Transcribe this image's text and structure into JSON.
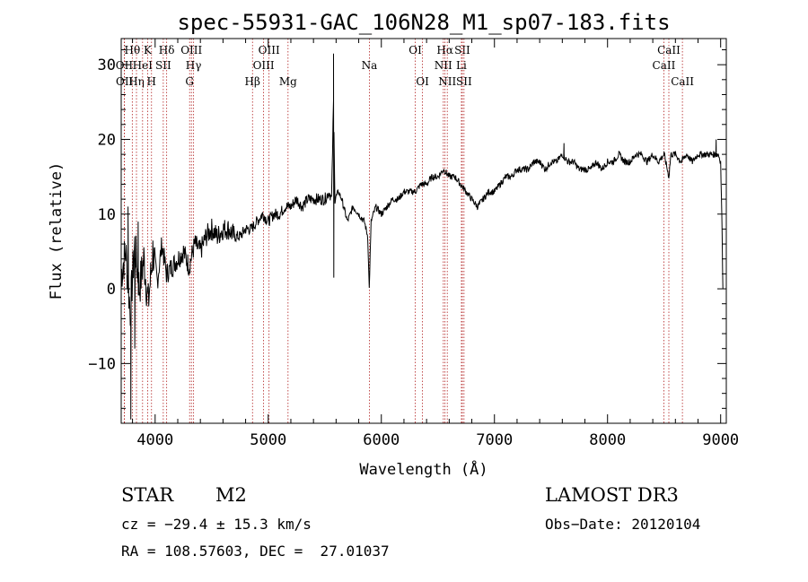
{
  "chart_data": {
    "type": "line",
    "title": "spec-55931-GAC_106N28_M1_sp07-183.fits",
    "xlabel": "Wavelength (Å)",
    "ylabel": "Flux (relative)",
    "xlim": [
      3700,
      9050
    ],
    "ylim": [
      -18,
      33.5
    ],
    "xticks": [
      4000,
      5000,
      6000,
      7000,
      8000,
      9000
    ],
    "yticks": [
      -10,
      0,
      10,
      20,
      30
    ],
    "series": [
      {
        "name": "spectrum",
        "x": [
          3700,
          3740,
          3780,
          3820,
          3860,
          3900,
          3940,
          3980,
          4020,
          4060,
          4100,
          4150,
          4200,
          4250,
          4300,
          4350,
          4400,
          4450,
          4500,
          4550,
          4600,
          4650,
          4700,
          4750,
          4800,
          4850,
          4900,
          4950,
          5000,
          5050,
          5100,
          5150,
          5200,
          5250,
          5300,
          5350,
          5400,
          5450,
          5500,
          5540,
          5560,
          5577,
          5590,
          5620,
          5650,
          5700,
          5750,
          5800,
          5850,
          5880,
          5893,
          5910,
          5950,
          6000,
          6050,
          6100,
          6150,
          6200,
          6250,
          6300,
          6350,
          6400,
          6450,
          6500,
          6550,
          6600,
          6650,
          6700,
          6750,
          6800,
          6850,
          6900,
          6950,
          7000,
          7050,
          7100,
          7150,
          7200,
          7250,
          7300,
          7350,
          7400,
          7450,
          7500,
          7550,
          7600,
          7650,
          7700,
          7750,
          7800,
          7850,
          7900,
          7950,
          8000,
          8050,
          8100,
          8150,
          8200,
          8250,
          8300,
          8350,
          8400,
          8450,
          8500,
          8542,
          8560,
          8600,
          8650,
          8700,
          8750,
          8800,
          8850,
          8900,
          8950,
          8980,
          9000,
          9010,
          9020
        ],
        "y": [
          2,
          5,
          -3,
          6,
          0,
          4,
          -2,
          5,
          1,
          6,
          2,
          3,
          4,
          5,
          3,
          6,
          5,
          7,
          8,
          7,
          8,
          8,
          7,
          7,
          8,
          8,
          9,
          10,
          9,
          10,
          10,
          11,
          11,
          12,
          11,
          12,
          12,
          12,
          12,
          13,
          12,
          25,
          12,
          13,
          12,
          9,
          11,
          10,
          9,
          7,
          0,
          9,
          11,
          10,
          11,
          12,
          12,
          13,
          13,
          13,
          14,
          14,
          15,
          15,
          16,
          15,
          15,
          14,
          13,
          12,
          11,
          12,
          13,
          13,
          14,
          15,
          15,
          16,
          16,
          16,
          17,
          17,
          16,
          17,
          17,
          18,
          17,
          17,
          16,
          16,
          16,
          17,
          16,
          17,
          17,
          18,
          17,
          17,
          18,
          18,
          17,
          18,
          17,
          18,
          15,
          18,
          18,
          17,
          18,
          17,
          18,
          18,
          18,
          18,
          18,
          17,
          10,
          0
        ],
        "features": [
          {
            "x": 5577,
            "y": 31.5
          },
          {
            "x": 5580,
            "y": 1.5
          },
          {
            "x": 3785,
            "y": -17.5
          },
          {
            "x": 3820,
            "y": -8
          },
          {
            "x": 3760,
            "y": 11
          },
          {
            "x": 3850,
            "y": 9
          },
          {
            "x": 7615,
            "y": 19.5
          },
          {
            "x": 8960,
            "y": 20
          }
        ]
      }
    ],
    "lines": [
      {
        "label": "Hθ",
        "wave": 3798,
        "row": 1
      },
      {
        "label": "OII",
        "wave": 3727,
        "row": 2
      },
      {
        "label": "OII",
        "wave": 3729,
        "row": 3
      },
      {
        "label": "Hη",
        "wave": 3835,
        "row": 3
      },
      {
        "label": "HeI",
        "wave": 3889,
        "row": 2
      },
      {
        "label": "K",
        "wave": 3934,
        "row": 1
      },
      {
        "label": "H",
        "wave": 3968,
        "row": 3
      },
      {
        "label": "SII",
        "wave": 4072,
        "row": 2
      },
      {
        "label": "Hδ",
        "wave": 4102,
        "row": 1
      },
      {
        "label": "OIII",
        "wave": 4321,
        "row": 1
      },
      {
        "label": "Hγ",
        "wave": 4340,
        "row": 2
      },
      {
        "label": "G",
        "wave": 4305,
        "row": 3
      },
      {
        "label": "Hβ",
        "wave": 4861,
        "row": 3
      },
      {
        "label": "OIII",
        "wave": 5007,
        "row": 1
      },
      {
        "label": "OIII",
        "wave": 4959,
        "row": 2
      },
      {
        "label": "Mg",
        "wave": 5175,
        "row": 3
      },
      {
        "label": "Na",
        "wave": 5894,
        "row": 2
      },
      {
        "label": "OI",
        "wave": 6300,
        "row": 1
      },
      {
        "label": "OI",
        "wave": 6364,
        "row": 3
      },
      {
        "label": "Hα",
        "wave": 6563,
        "row": 1
      },
      {
        "label": "NII",
        "wave": 6548,
        "row": 2
      },
      {
        "label": "NII",
        "wave": 6583,
        "row": 3
      },
      {
        "label": "SII",
        "wave": 6716,
        "row": 1
      },
      {
        "label": "Li",
        "wave": 6708,
        "row": 2
      },
      {
        "label": "SII",
        "wave": 6731,
        "row": 3
      },
      {
        "label": "CaII",
        "wave": 8542,
        "row": 1
      },
      {
        "label": "CaII",
        "wave": 8498,
        "row": 2
      },
      {
        "label": "CaII",
        "wave": 8662,
        "row": 3
      }
    ]
  },
  "info": {
    "class_label": "STAR",
    "subclass": "M2",
    "survey": "LAMOST DR3",
    "redshift": "cz = −29.4 ± 15.3 km/s",
    "obs_date": "Obs−Date: 20120104",
    "coords": "RA = 108.57603, DEC =  27.01037"
  },
  "colors": {
    "line_marker": "#b22222",
    "spectrum": "#000000"
  }
}
